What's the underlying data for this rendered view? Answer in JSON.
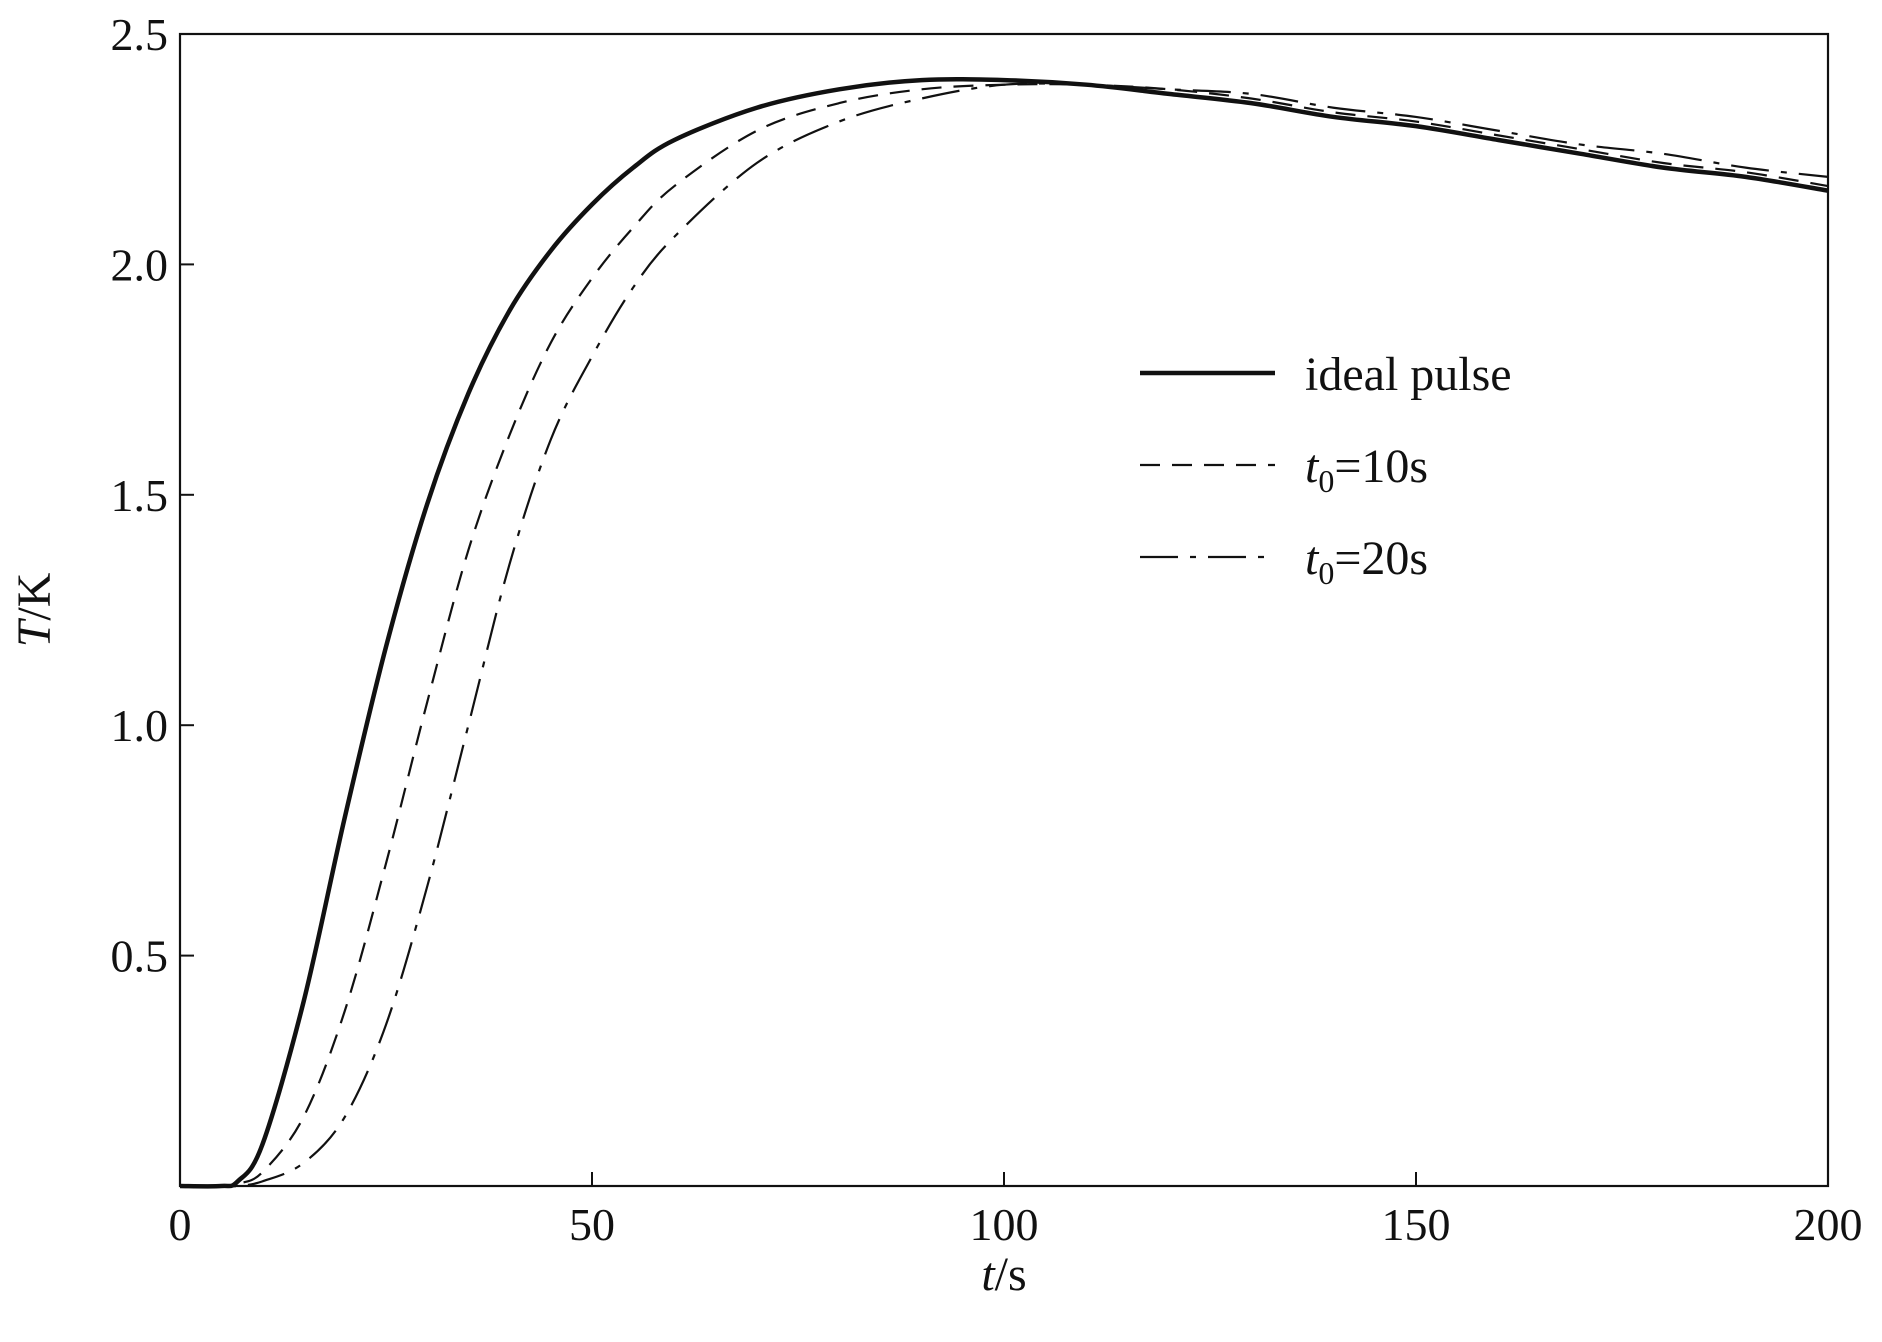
{
  "chart_data": {
    "type": "line",
    "xlabel": "t/s",
    "ylabel": "T/K",
    "xlim": [
      0,
      200
    ],
    "ylim": [
      0,
      2.5
    ],
    "xticks": [
      0,
      50,
      100,
      150,
      200
    ],
    "xtick_labels": [
      "0",
      "50",
      "100",
      "150",
      "200"
    ],
    "yticks": [
      0.5,
      1.0,
      1.5,
      2.0,
      2.5
    ],
    "ytick_labels": [
      "0.5",
      "1.0",
      "1.5",
      "2.0",
      "2.5"
    ],
    "grid": false,
    "legend_position": "center-right",
    "series": [
      {
        "name": "ideal pulse",
        "style": "solid",
        "color": "#111111",
        "x": [
          0,
          5,
          7,
          10,
          15,
          20,
          25,
          30,
          35,
          40,
          45,
          50,
          55,
          60,
          70,
          80,
          90,
          100,
          110,
          120,
          130,
          140,
          150,
          160,
          170,
          180,
          190,
          200
        ],
        "y": [
          0,
          0,
          0.01,
          0.09,
          0.4,
          0.8,
          1.17,
          1.48,
          1.72,
          1.9,
          2.03,
          2.13,
          2.21,
          2.27,
          2.34,
          2.38,
          2.4,
          2.4,
          2.39,
          2.37,
          2.35,
          2.32,
          2.3,
          2.27,
          2.24,
          2.21,
          2.19,
          2.16
        ]
      },
      {
        "name": "t0=10s",
        "style": "dashed",
        "color": "#111111",
        "x": [
          0,
          5,
          7,
          10,
          15,
          20,
          25,
          30,
          35,
          40,
          45,
          50,
          55,
          60,
          70,
          80,
          90,
          100,
          110,
          120,
          130,
          140,
          150,
          160,
          170,
          180,
          190,
          200
        ],
        "y": [
          0,
          0,
          0.005,
          0.03,
          0.15,
          0.38,
          0.7,
          1.05,
          1.38,
          1.63,
          1.83,
          1.97,
          2.08,
          2.17,
          2.29,
          2.35,
          2.38,
          2.39,
          2.39,
          2.38,
          2.36,
          2.33,
          2.31,
          2.28,
          2.25,
          2.22,
          2.2,
          2.17
        ]
      },
      {
        "name": "t0=20s",
        "style": "dashdot",
        "color": "#111111",
        "x": [
          0,
          5,
          7,
          10,
          15,
          20,
          25,
          30,
          35,
          40,
          45,
          50,
          55,
          60,
          70,
          80,
          90,
          100,
          110,
          120,
          130,
          140,
          150,
          160,
          170,
          180,
          190,
          200
        ],
        "y": [
          0,
          0,
          0,
          0.01,
          0.05,
          0.15,
          0.35,
          0.65,
          1.0,
          1.35,
          1.62,
          1.8,
          1.95,
          2.06,
          2.22,
          2.31,
          2.36,
          2.39,
          2.39,
          2.38,
          2.37,
          2.34,
          2.32,
          2.29,
          2.26,
          2.24,
          2.21,
          2.19
        ]
      }
    ],
    "legend": {
      "entries": [
        {
          "label": "ideal pulse",
          "main": "ideal pulse",
          "sub": "",
          "rest": ""
        },
        {
          "label": "t0=10s",
          "main": "t",
          "sub": "0",
          "rest": "=10s"
        },
        {
          "label": "t0=20s",
          "main": "t",
          "sub": "0",
          "rest": "=20s"
        }
      ]
    }
  }
}
